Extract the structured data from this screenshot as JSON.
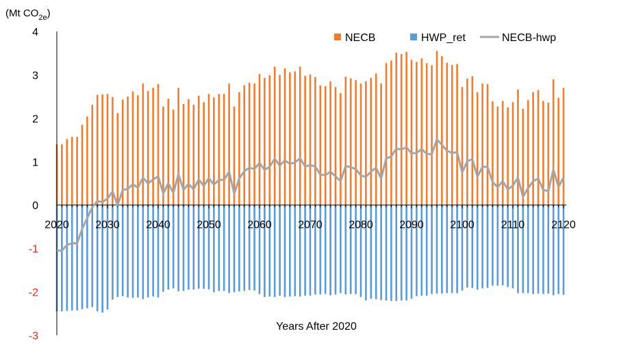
{
  "chart_data": {
    "type": "bar",
    "title": "",
    "unit_label": {
      "prefix": "(Mt CO",
      "subscript": "2e",
      "suffix": ")"
    },
    "xlabel": "Years After 2020",
    "ylabel": "",
    "ylim": [
      -3,
      4
    ],
    "y_ticks": [
      "4",
      "3",
      "2",
      "1",
      "0",
      "-1",
      "-2",
      "-3"
    ],
    "y_tick_values": [
      4,
      3,
      2,
      1,
      0,
      -1,
      -2,
      -3
    ],
    "x_ticks": [
      "2020",
      "2030",
      "2040",
      "2050",
      "2060",
      "2070",
      "2080",
      "2090",
      "2100",
      "2110",
      "2120"
    ],
    "x_tick_values": [
      2020,
      2030,
      2040,
      2050,
      2060,
      2070,
      2080,
      2090,
      2100,
      2110,
      2120
    ],
    "xlim": [
      2020,
      2120
    ],
    "grid": false,
    "legend_position": "top-right",
    "colors": {
      "NECB": "#ed7d31",
      "HWP_ret": "#5b9bd5",
      "NECB-hwp": "#a5a5a5",
      "negative_ticks": "#e8231b"
    },
    "series": [
      {
        "name": "NECB",
        "kind": "bar",
        "x": [
          2020,
          2021,
          2022,
          2023,
          2024,
          2025,
          2026,
          2027,
          2028,
          2029,
          2030,
          2031,
          2032,
          2033,
          2034,
          2035,
          2036,
          2037,
          2038,
          2039,
          2040,
          2041,
          2042,
          2043,
          2044,
          2045,
          2046,
          2047,
          2048,
          2049,
          2050,
          2051,
          2052,
          2053,
          2054,
          2055,
          2056,
          2057,
          2058,
          2059,
          2060,
          2061,
          2062,
          2063,
          2064,
          2065,
          2066,
          2067,
          2068,
          2069,
          2070,
          2071,
          2072,
          2073,
          2074,
          2075,
          2076,
          2077,
          2078,
          2079,
          2080,
          2081,
          2082,
          2083,
          2084,
          2085,
          2086,
          2087,
          2088,
          2089,
          2090,
          2091,
          2092,
          2093,
          2094,
          2095,
          2096,
          2097,
          2098,
          2099,
          2100,
          2101,
          2102,
          2103,
          2104,
          2105,
          2106,
          2107,
          2108,
          2109,
          2110,
          2111,
          2112,
          2113,
          2114,
          2115,
          2116,
          2117,
          2118,
          2119,
          2120
        ],
        "values": [
          1.4,
          1.4,
          1.52,
          1.57,
          1.57,
          1.85,
          2.04,
          2.31,
          2.54,
          2.55,
          2.56,
          2.49,
          2.12,
          2.43,
          2.5,
          2.62,
          2.53,
          2.8,
          2.63,
          2.7,
          2.79,
          2.27,
          2.45,
          2.2,
          2.7,
          2.33,
          2.44,
          2.31,
          2.52,
          2.37,
          2.56,
          2.48,
          2.56,
          2.56,
          2.8,
          2.27,
          2.6,
          2.76,
          2.82,
          2.8,
          3.02,
          2.93,
          2.99,
          3.19,
          3.0,
          3.15,
          3.06,
          3.08,
          3.19,
          2.98,
          3.01,
          2.95,
          2.76,
          2.74,
          2.85,
          2.72,
          2.58,
          2.96,
          2.92,
          2.88,
          2.8,
          2.85,
          2.93,
          3.03,
          2.8,
          3.27,
          3.33,
          3.51,
          3.48,
          3.53,
          3.35,
          3.3,
          3.38,
          3.27,
          3.22,
          3.55,
          3.43,
          3.28,
          3.23,
          3.25,
          2.72,
          2.91,
          2.97,
          2.6,
          2.8,
          2.79,
          2.39,
          2.27,
          2.4,
          2.25,
          2.37,
          2.66,
          2.22,
          2.42,
          2.6,
          2.65,
          2.4,
          2.36,
          2.9,
          2.47,
          2.7
        ]
      },
      {
        "name": "HWP_ret",
        "kind": "bar",
        "x": [
          2020,
          2021,
          2022,
          2023,
          2024,
          2025,
          2026,
          2027,
          2028,
          2029,
          2030,
          2031,
          2032,
          2033,
          2034,
          2035,
          2036,
          2037,
          2038,
          2039,
          2040,
          2041,
          2042,
          2043,
          2044,
          2045,
          2046,
          2047,
          2048,
          2049,
          2050,
          2051,
          2052,
          2053,
          2054,
          2055,
          2056,
          2057,
          2058,
          2059,
          2060,
          2061,
          2062,
          2063,
          2064,
          2065,
          2066,
          2067,
          2068,
          2069,
          2070,
          2071,
          2072,
          2073,
          2074,
          2075,
          2076,
          2077,
          2078,
          2079,
          2080,
          2081,
          2082,
          2083,
          2084,
          2085,
          2086,
          2087,
          2088,
          2089,
          2090,
          2091,
          2092,
          2093,
          2094,
          2095,
          2096,
          2097,
          2098,
          2099,
          2100,
          2101,
          2102,
          2103,
          2104,
          2105,
          2106,
          2107,
          2108,
          2109,
          2110,
          2111,
          2112,
          2113,
          2114,
          2115,
          2116,
          2117,
          2118,
          2119,
          2120
        ],
        "values": [
          -2.45,
          -2.45,
          -2.44,
          -2.43,
          -2.43,
          -2.4,
          -2.38,
          -2.35,
          -2.45,
          -2.48,
          -2.41,
          -2.18,
          -2.12,
          -2.1,
          -2.13,
          -2.14,
          -2.13,
          -2.17,
          -2.13,
          -2.11,
          -2.13,
          -2.0,
          -1.95,
          -1.92,
          -1.99,
          -1.98,
          -1.95,
          -1.95,
          -1.93,
          -1.93,
          -1.94,
          -2.01,
          -1.98,
          -1.98,
          -2.03,
          -2.01,
          -1.99,
          -1.98,
          -1.96,
          -1.97,
          -2.05,
          -2.12,
          -2.11,
          -2.12,
          -2.09,
          -2.12,
          -2.11,
          -2.1,
          -2.11,
          -2.09,
          -2.09,
          -2.06,
          -2.06,
          -2.05,
          -2.08,
          -2.06,
          -2.03,
          -2.06,
          -2.05,
          -2.05,
          -2.12,
          -2.2,
          -2.16,
          -2.17,
          -2.19,
          -2.2,
          -2.21,
          -2.21,
          -2.2,
          -2.2,
          -2.16,
          -2.1,
          -2.09,
          -2.09,
          -2.05,
          -2.04,
          -2.04,
          -2.03,
          -2.03,
          -2.03,
          -1.97,
          -1.9,
          -1.91,
          -1.95,
          -1.92,
          -1.91,
          -1.86,
          -1.86,
          -1.85,
          -1.89,
          -1.92,
          -2.03,
          -2.03,
          -2.03,
          -2.05,
          -2.04,
          -2.05,
          -2.04,
          -2.08,
          -2.05,
          -2.07
        ]
      },
      {
        "name": "NECB-hwp",
        "kind": "line",
        "x": [
          2020,
          2021,
          2022,
          2023,
          2024,
          2025,
          2026,
          2027,
          2028,
          2029,
          2030,
          2031,
          2032,
          2033,
          2034,
          2035,
          2036,
          2037,
          2038,
          2039,
          2040,
          2041,
          2042,
          2043,
          2044,
          2045,
          2046,
          2047,
          2048,
          2049,
          2050,
          2051,
          2052,
          2053,
          2054,
          2055,
          2056,
          2057,
          2058,
          2059,
          2060,
          2061,
          2062,
          2063,
          2064,
          2065,
          2066,
          2067,
          2068,
          2069,
          2070,
          2071,
          2072,
          2073,
          2074,
          2075,
          2076,
          2077,
          2078,
          2079,
          2080,
          2081,
          2082,
          2083,
          2084,
          2085,
          2086,
          2087,
          2088,
          2089,
          2090,
          2091,
          2092,
          2093,
          2094,
          2095,
          2096,
          2097,
          2098,
          2099,
          2100,
          2101,
          2102,
          2103,
          2104,
          2105,
          2106,
          2107,
          2108,
          2109,
          2110,
          2111,
          2112,
          2113,
          2114,
          2115,
          2116,
          2117,
          2118,
          2119,
          2120
        ],
        "values": [
          -1.05,
          -1.05,
          -0.92,
          -0.88,
          -0.88,
          -0.55,
          -0.3,
          -0.05,
          0.09,
          0.07,
          0.15,
          0.31,
          0.0,
          0.35,
          0.37,
          0.48,
          0.4,
          0.63,
          0.5,
          0.59,
          0.66,
          0.27,
          0.5,
          0.28,
          0.71,
          0.35,
          0.49,
          0.36,
          0.59,
          0.44,
          0.62,
          0.47,
          0.58,
          0.58,
          0.77,
          0.26,
          0.61,
          0.78,
          0.86,
          0.83,
          0.97,
          0.81,
          0.88,
          1.07,
          0.91,
          1.03,
          0.95,
          0.98,
          1.08,
          0.89,
          0.92,
          0.89,
          0.7,
          0.69,
          0.77,
          0.66,
          0.55,
          0.9,
          0.87,
          0.83,
          0.68,
          0.65,
          0.77,
          0.86,
          0.61,
          1.07,
          1.12,
          1.3,
          1.28,
          1.33,
          1.19,
          1.2,
          1.29,
          1.18,
          1.17,
          1.51,
          1.39,
          1.25,
          1.2,
          1.22,
          0.75,
          1.01,
          1.06,
          0.65,
          0.88,
          0.88,
          0.53,
          0.41,
          0.55,
          0.36,
          0.45,
          0.63,
          0.19,
          0.39,
          0.55,
          0.61,
          0.35,
          0.32,
          0.82,
          0.42,
          0.63
        ]
      }
    ]
  }
}
